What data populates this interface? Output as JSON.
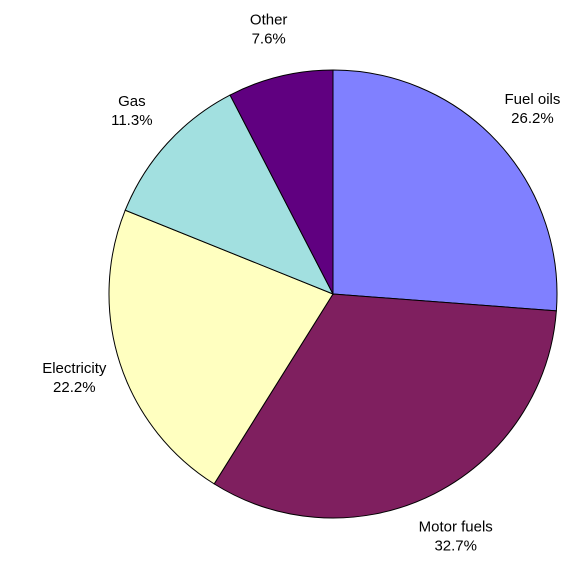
{
  "chart_data": {
    "type": "pie",
    "categories": [
      "Fuel oils",
      "Motor fuels",
      "Electricity",
      "Gas",
      "Other"
    ],
    "values": [
      26.2,
      32.7,
      22.2,
      11.3,
      7.6
    ],
    "value_labels": [
      "26.2%",
      "32.7%",
      "22.2%",
      "11.3%",
      "7.6%"
    ],
    "colors": [
      "#8080ff",
      "#7f1f5f",
      "#ffffc0",
      "#a2e0e0",
      "#600080"
    ]
  }
}
